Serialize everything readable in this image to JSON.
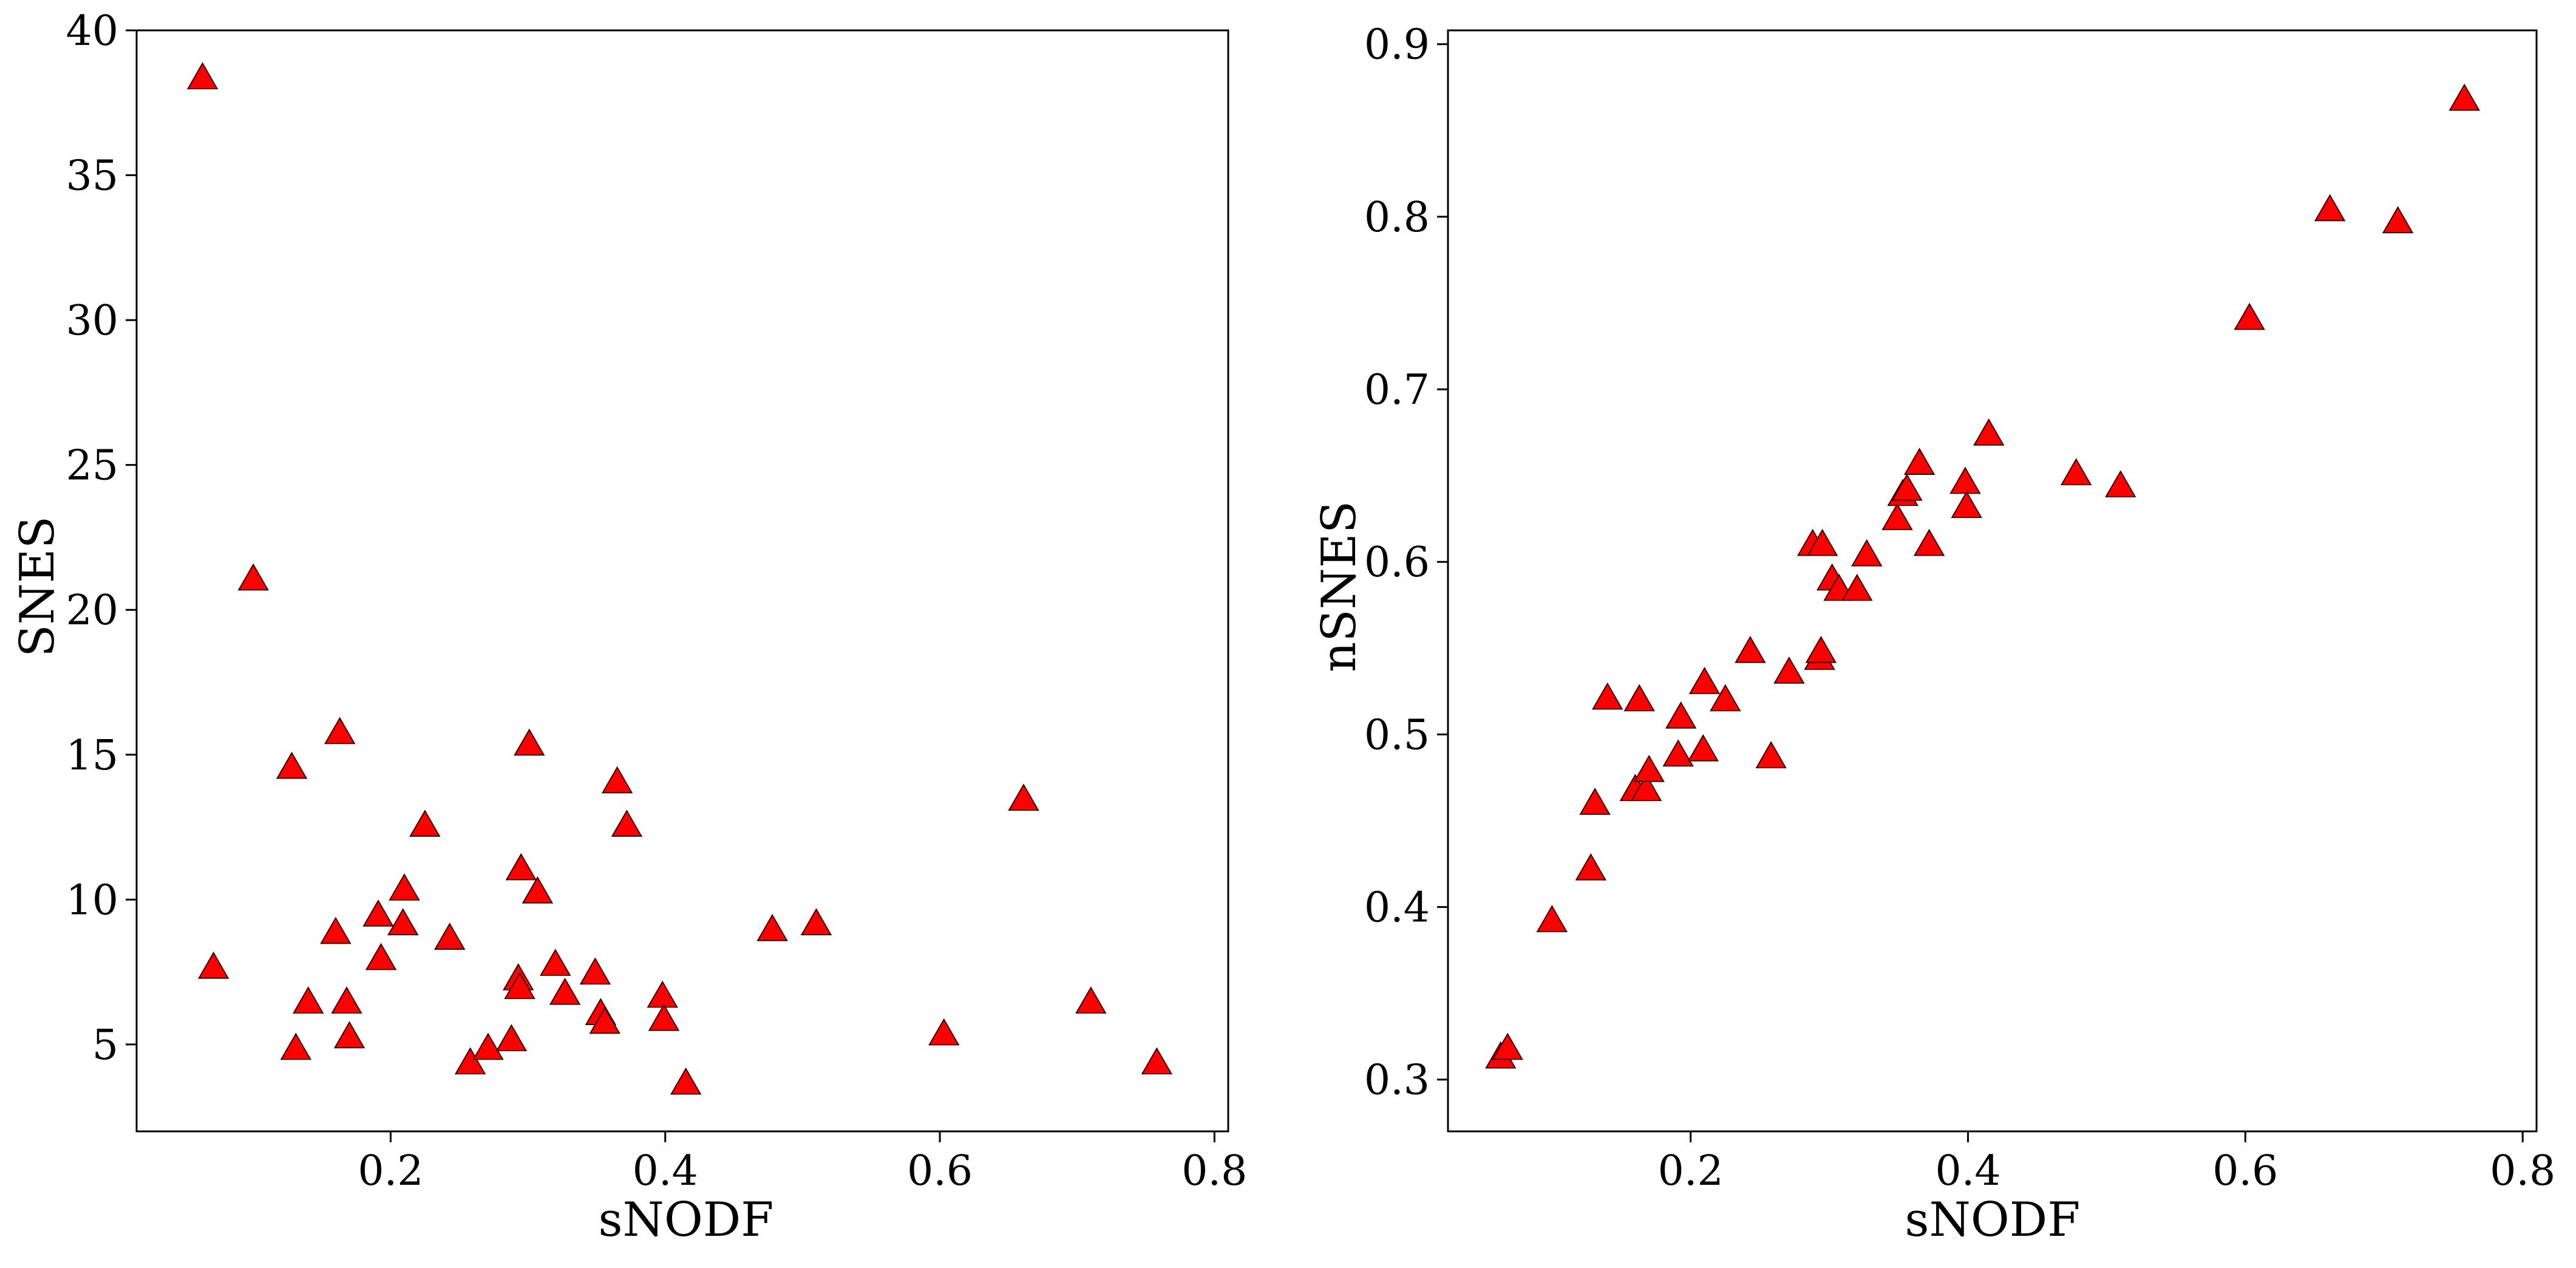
{
  "chart_data": [
    {
      "type": "scatter",
      "xlabel": "sNODF",
      "ylabel": "SNES",
      "xlim": [
        0.015,
        0.81
      ],
      "ylim": [
        2.0,
        40.0
      ],
      "xticks": [
        0.2,
        0.4,
        0.6,
        0.8
      ],
      "yticks": [
        5,
        10,
        15,
        20,
        25,
        30,
        35,
        40
      ],
      "xtick_labels": [
        "0.2",
        "0.4",
        "0.6",
        "0.8"
      ],
      "ytick_labels": [
        "5",
        "10",
        "15",
        "20",
        "25",
        "30",
        "35",
        "40"
      ],
      "marker": "triangle",
      "marker_color": "#ff0000",
      "grid": false,
      "points": [
        {
          "x": 0.063,
          "y": 38.3
        },
        {
          "x": 0.071,
          "y": 7.6
        },
        {
          "x": 0.1,
          "y": 21.0
        },
        {
          "x": 0.128,
          "y": 14.5
        },
        {
          "x": 0.131,
          "y": 4.8
        },
        {
          "x": 0.14,
          "y": 6.4
        },
        {
          "x": 0.16,
          "y": 8.8
        },
        {
          "x": 0.163,
          "y": 15.7
        },
        {
          "x": 0.168,
          "y": 6.4
        },
        {
          "x": 0.17,
          "y": 5.2
        },
        {
          "x": 0.191,
          "y": 9.4
        },
        {
          "x": 0.193,
          "y": 7.9
        },
        {
          "x": 0.209,
          "y": 9.1
        },
        {
          "x": 0.21,
          "y": 10.3
        },
        {
          "x": 0.225,
          "y": 12.5
        },
        {
          "x": 0.243,
          "y": 8.6
        },
        {
          "x": 0.258,
          "y": 4.3
        },
        {
          "x": 0.271,
          "y": 4.8
        },
        {
          "x": 0.288,
          "y": 5.1
        },
        {
          "x": 0.293,
          "y": 7.2
        },
        {
          "x": 0.294,
          "y": 6.9
        },
        {
          "x": 0.295,
          "y": 11.0
        },
        {
          "x": 0.301,
          "y": 15.3
        },
        {
          "x": 0.307,
          "y": 10.2
        },
        {
          "x": 0.32,
          "y": 7.7
        },
        {
          "x": 0.327,
          "y": 6.7
        },
        {
          "x": 0.349,
          "y": 7.4
        },
        {
          "x": 0.353,
          "y": 6.0
        },
        {
          "x": 0.356,
          "y": 5.7
        },
        {
          "x": 0.365,
          "y": 14.0
        },
        {
          "x": 0.372,
          "y": 12.5
        },
        {
          "x": 0.398,
          "y": 6.6
        },
        {
          "x": 0.399,
          "y": 5.8
        },
        {
          "x": 0.415,
          "y": 3.6
        },
        {
          "x": 0.478,
          "y": 8.9
        },
        {
          "x": 0.51,
          "y": 9.1
        },
        {
          "x": 0.603,
          "y": 5.3
        },
        {
          "x": 0.661,
          "y": 13.4
        },
        {
          "x": 0.71,
          "y": 6.4
        },
        {
          "x": 0.758,
          "y": 4.3
        }
      ]
    },
    {
      "type": "scatter",
      "xlabel": "sNODF",
      "ylabel": "nSNES",
      "xlim": [
        0.025,
        0.81
      ],
      "ylim": [
        0.27,
        0.908
      ],
      "xticks": [
        0.2,
        0.4,
        0.6,
        0.8
      ],
      "yticks": [
        0.3,
        0.4,
        0.5,
        0.6,
        0.7,
        0.8,
        0.9
      ],
      "xtick_labels": [
        "0.2",
        "0.4",
        "0.6",
        "0.8"
      ],
      "ytick_labels": [
        "0.3",
        "0.4",
        "0.5",
        "0.6",
        "0.7",
        "0.8",
        "0.9"
      ],
      "marker": "triangle",
      "marker_color": "#ff0000",
      "grid": false,
      "points": [
        {
          "x": 0.063,
          "y": 0.312
        },
        {
          "x": 0.068,
          "y": 0.317
        },
        {
          "x": 0.1,
          "y": 0.391
        },
        {
          "x": 0.128,
          "y": 0.421
        },
        {
          "x": 0.131,
          "y": 0.459
        },
        {
          "x": 0.14,
          "y": 0.52
        },
        {
          "x": 0.16,
          "y": 0.467
        },
        {
          "x": 0.163,
          "y": 0.519
        },
        {
          "x": 0.168,
          "y": 0.467
        },
        {
          "x": 0.17,
          "y": 0.478
        },
        {
          "x": 0.191,
          "y": 0.487
        },
        {
          "x": 0.193,
          "y": 0.509
        },
        {
          "x": 0.209,
          "y": 0.49
        },
        {
          "x": 0.21,
          "y": 0.529
        },
        {
          "x": 0.225,
          "y": 0.519
        },
        {
          "x": 0.243,
          "y": 0.547
        },
        {
          "x": 0.258,
          "y": 0.486
        },
        {
          "x": 0.271,
          "y": 0.535
        },
        {
          "x": 0.288,
          "y": 0.609
        },
        {
          "x": 0.293,
          "y": 0.543
        },
        {
          "x": 0.294,
          "y": 0.547
        },
        {
          "x": 0.295,
          "y": 0.609
        },
        {
          "x": 0.302,
          "y": 0.589
        },
        {
          "x": 0.307,
          "y": 0.583
        },
        {
          "x": 0.32,
          "y": 0.583
        },
        {
          "x": 0.327,
          "y": 0.603
        },
        {
          "x": 0.349,
          "y": 0.624
        },
        {
          "x": 0.353,
          "y": 0.638
        },
        {
          "x": 0.356,
          "y": 0.641
        },
        {
          "x": 0.365,
          "y": 0.656
        },
        {
          "x": 0.372,
          "y": 0.609
        },
        {
          "x": 0.398,
          "y": 0.645
        },
        {
          "x": 0.399,
          "y": 0.631
        },
        {
          "x": 0.415,
          "y": 0.673
        },
        {
          "x": 0.478,
          "y": 0.65
        },
        {
          "x": 0.51,
          "y": 0.643
        },
        {
          "x": 0.603,
          "y": 0.74
        },
        {
          "x": 0.661,
          "y": 0.803
        },
        {
          "x": 0.71,
          "y": 0.796
        },
        {
          "x": 0.758,
          "y": 0.867
        }
      ]
    }
  ]
}
